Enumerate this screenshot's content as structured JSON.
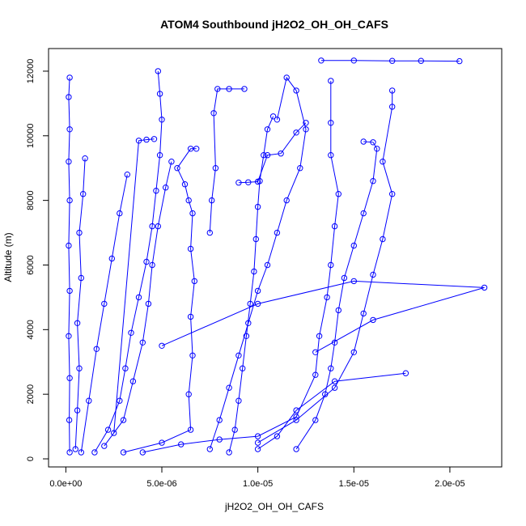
{
  "chart_data": {
    "type": "scatter",
    "title": "ATOM4 Southbound jH2O2_OH_OH_CAFS",
    "xlabel": "jH2O2_OH_OH_CAFS",
    "ylabel": "Altitude (m)",
    "xlim": [
      -9e-07,
      2.27e-05
    ],
    "ylim": [
      -250,
      12700
    ],
    "x_ticks": [
      0,
      5e-06,
      1e-05,
      1.5e-05,
      2e-05
    ],
    "x_tick_labels": [
      "0.0e+00",
      "5.0e-06",
      "1.0e-05",
      "1.5e-05",
      "2.0e-05"
    ],
    "y_ticks": [
      0,
      2000,
      4000,
      6000,
      8000,
      10000,
      12000
    ],
    "y_tick_labels": [
      "0",
      "2000",
      "4000",
      "6000",
      "8000",
      "10000",
      "12000"
    ],
    "grid": false,
    "legend": "none",
    "marker": "open-circle",
    "color": "#0000ff",
    "series": [
      {
        "values": [
          [
            2e-07,
            200
          ],
          [
            1.8e-07,
            1200
          ],
          [
            2e-07,
            2500
          ],
          [
            1.5e-07,
            3800
          ],
          [
            2e-07,
            5200
          ],
          [
            1.5e-07,
            6600
          ],
          [
            2e-07,
            8000
          ],
          [
            1.5e-07,
            9200
          ],
          [
            2e-07,
            10200
          ],
          [
            1.5e-07,
            11200
          ],
          [
            2e-07,
            11800
          ]
        ]
      },
      {
        "values": [
          [
            5e-07,
            300
          ],
          [
            6e-07,
            1500
          ],
          [
            7e-07,
            2800
          ],
          [
            6e-07,
            4200
          ],
          [
            8e-07,
            5600
          ],
          [
            7e-07,
            7000
          ],
          [
            9e-07,
            8200
          ],
          [
            1e-06,
            9300
          ]
        ]
      },
      {
        "values": [
          [
            1.5e-06,
            200
          ],
          [
            2.2e-06,
            900
          ],
          [
            2.8e-06,
            1800
          ],
          [
            3.1e-06,
            2800
          ],
          [
            3.4e-06,
            3900
          ],
          [
            3.8e-06,
            5000
          ],
          [
            4.2e-06,
            6100
          ],
          [
            4.5e-06,
            7200
          ],
          [
            4.7e-06,
            8300
          ],
          [
            4.9e-06,
            9400
          ],
          [
            5e-06,
            10500
          ],
          [
            4.9e-06,
            11300
          ],
          [
            4.8e-06,
            12000
          ]
        ]
      },
      {
        "values": [
          [
            3e-06,
            200
          ],
          [
            5e-06,
            500
          ],
          [
            6.5e-06,
            900
          ],
          [
            6.4e-06,
            2000
          ],
          [
            6.6e-06,
            3200
          ],
          [
            6.5e-06,
            4400
          ],
          [
            6.7e-06,
            5500
          ],
          [
            6.5e-06,
            6500
          ],
          [
            6.6e-06,
            7600
          ],
          [
            6.4e-06,
            8000
          ],
          [
            6.2e-06,
            8500
          ],
          [
            5.8e-06,
            9000
          ],
          [
            6.5e-06,
            9600
          ],
          [
            6.8e-06,
            9600
          ]
        ]
      },
      {
        "values": [
          [
            2.5e-06,
            800
          ],
          [
            3.8e-06,
            9850
          ],
          [
            4.2e-06,
            9880
          ],
          [
            4.6e-06,
            9900
          ]
        ]
      },
      {
        "values": [
          [
            8.5e-06,
            200
          ],
          [
            8.8e-06,
            900
          ],
          [
            9e-06,
            1800
          ],
          [
            9.2e-06,
            2800
          ],
          [
            9.4e-06,
            3800
          ],
          [
            9.6e-06,
            4800
          ],
          [
            9.8e-06,
            5800
          ],
          [
            9.9e-06,
            6800
          ],
          [
            1e-05,
            7800
          ],
          [
            1.01e-05,
            8600
          ],
          [
            1.03e-05,
            9400
          ],
          [
            1.05e-05,
            10200
          ],
          [
            1.08e-05,
            10600
          ]
        ]
      },
      {
        "values": [
          [
            7.5e-06,
            7000
          ],
          [
            7.6e-06,
            8000
          ],
          [
            7.8e-06,
            9000
          ],
          [
            7.7e-06,
            10700
          ],
          [
            7.9e-06,
            11450
          ],
          [
            8.5e-06,
            11450
          ],
          [
            9.3e-06,
            11450
          ]
        ]
      },
      {
        "values": [
          [
            4e-06,
            200
          ],
          [
            6e-06,
            450
          ],
          [
            8e-06,
            600
          ],
          [
            1e-05,
            700
          ],
          [
            1.2e-05,
            1300
          ],
          [
            1.3e-05,
            2600
          ],
          [
            1.32e-05,
            3800
          ],
          [
            1.36e-05,
            5000
          ],
          [
            1.38e-05,
            6000
          ],
          [
            1.4e-05,
            7200
          ],
          [
            1.42e-05,
            8200
          ],
          [
            1.38e-05,
            9400
          ],
          [
            1.38e-05,
            10400
          ],
          [
            1.38e-05,
            11700
          ]
        ]
      },
      {
        "values": [
          [
            1e-05,
            300
          ],
          [
            1.1e-05,
            700
          ],
          [
            1.2e-05,
            1500
          ],
          [
            1.4e-05,
            2400
          ],
          [
            1.77e-05,
            2650
          ]
        ]
      },
      {
        "values": [
          [
            5e-06,
            3500
          ],
          [
            1e-05,
            4800
          ],
          [
            1.5e-05,
            5500
          ],
          [
            2.18e-05,
            5300
          ],
          [
            1.6e-05,
            4300
          ],
          [
            1.3e-05,
            3300
          ]
        ]
      },
      {
        "values": [
          [
            1e-05,
            500
          ],
          [
            1.2e-05,
            1200
          ],
          [
            1.4e-05,
            2200
          ],
          [
            1.5e-05,
            3300
          ],
          [
            1.55e-05,
            4500
          ],
          [
            1.6e-05,
            5700
          ],
          [
            1.65e-05,
            6800
          ],
          [
            1.7e-05,
            8200
          ],
          [
            1.65e-05,
            9200
          ],
          [
            1.7e-05,
            10900
          ],
          [
            1.7e-05,
            11400
          ]
        ]
      },
      {
        "values": [
          [
            1.33e-05,
            12330
          ],
          [
            1.5e-05,
            12330
          ],
          [
            1.7e-05,
            12320
          ],
          [
            1.85e-05,
            12320
          ],
          [
            2.05e-05,
            12310
          ]
        ]
      },
      {
        "values": [
          [
            1.2e-05,
            300
          ],
          [
            1.3e-05,
            1200
          ],
          [
            1.35e-05,
            2000
          ],
          [
            1.38e-05,
            2800
          ],
          [
            1.4e-05,
            3600
          ],
          [
            1.42e-05,
            4600
          ],
          [
            1.45e-05,
            5600
          ],
          [
            1.5e-05,
            6600
          ],
          [
            1.55e-05,
            7600
          ],
          [
            1.6e-05,
            8600
          ],
          [
            1.62e-05,
            9600
          ],
          [
            1.6e-05,
            9800
          ],
          [
            1.55e-05,
            9820
          ]
        ]
      },
      {
        "values": [
          [
            1.1e-05,
            10500
          ],
          [
            1.15e-05,
            11800
          ],
          [
            1.2e-05,
            11400
          ],
          [
            1.25e-05,
            10200
          ],
          [
            1.22e-05,
            9000
          ],
          [
            1.15e-05,
            8000
          ],
          [
            1.1e-05,
            7000
          ],
          [
            1.05e-05,
            6000
          ],
          [
            1e-05,
            5200
          ],
          [
            9.5e-06,
            4200
          ],
          [
            9e-06,
            3200
          ],
          [
            8.5e-06,
            2200
          ],
          [
            8e-06,
            1200
          ],
          [
            7.5e-06,
            300
          ]
        ]
      },
      {
        "values": [
          [
            9e-06,
            8550
          ],
          [
            9.5e-06,
            8560
          ],
          [
            1e-05,
            8580
          ],
          [
            1.05e-05,
            9400
          ],
          [
            1.12e-05,
            9450
          ],
          [
            1.2e-05,
            10100
          ],
          [
            1.25e-05,
            10400
          ]
        ]
      },
      {
        "values": [
          [
            2e-06,
            400
          ],
          [
            3e-06,
            1200
          ],
          [
            3.5e-06,
            2400
          ],
          [
            4e-06,
            3600
          ],
          [
            4.3e-06,
            4800
          ],
          [
            4.5e-06,
            6000
          ],
          [
            4.8e-06,
            7200
          ],
          [
            5.2e-06,
            8400
          ],
          [
            5.5e-06,
            9200
          ]
        ]
      },
      {
        "values": [
          [
            8e-07,
            200
          ],
          [
            1.2e-06,
            1800
          ],
          [
            1.6e-06,
            3400
          ],
          [
            2e-06,
            4800
          ],
          [
            2.4e-06,
            6200
          ],
          [
            2.8e-06,
            7600
          ],
          [
            3.2e-06,
            8800
          ]
        ]
      }
    ]
  }
}
